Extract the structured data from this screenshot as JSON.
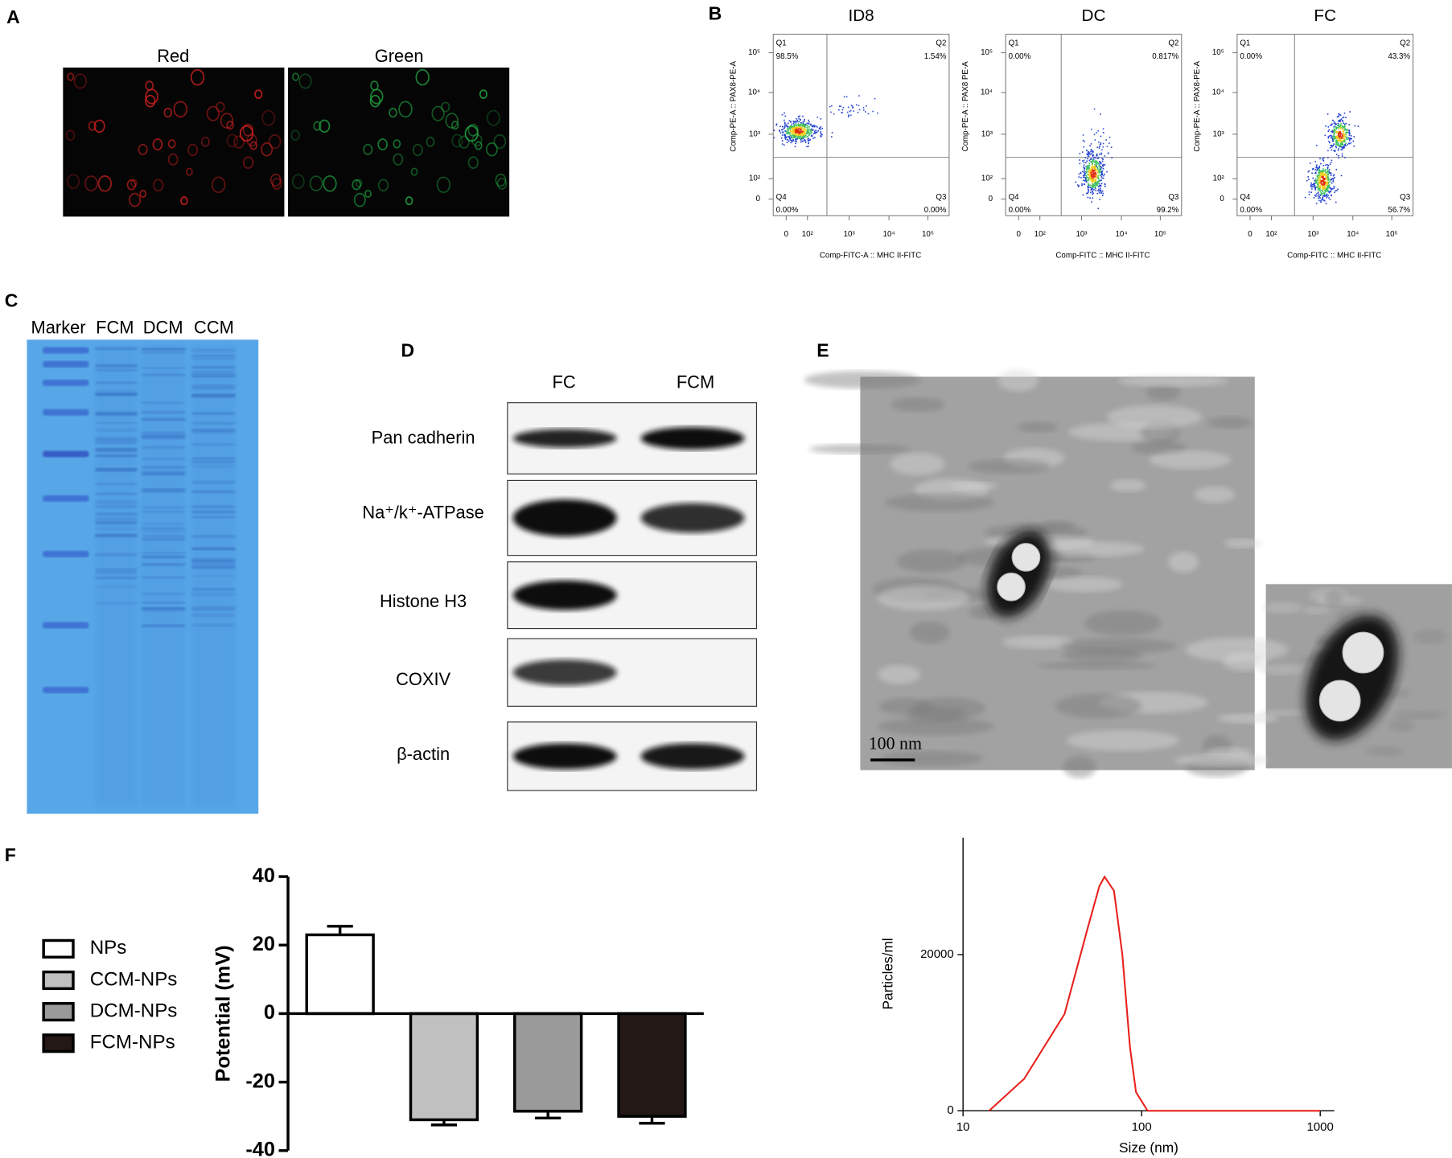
{
  "figure": {
    "A": {
      "label": "A",
      "images": [
        "Red",
        "Green"
      ]
    },
    "B": {
      "label": "B",
      "plots": [
        {
          "title": "ID8",
          "quadrants": [
            {
              "name": "Q1",
              "percent": "98.5%"
            },
            {
              "name": "Q2",
              "percent": "1.54%"
            },
            {
              "name": "Q4",
              "percent": "0.00%"
            },
            {
              "name": "Q3",
              "percent": "0.00%"
            }
          ],
          "xlabel": "Comp-FITC-A :: MHC II-FITC",
          "ylabel": "Comp-PE-A :: PAX8-PE-A",
          "xticks": [
            "0",
            "10²",
            "10³",
            "10⁴",
            "10⁵"
          ],
          "yticks": [
            "0",
            "10²",
            "10³",
            "10⁴",
            "10⁵"
          ]
        },
        {
          "title": "DC",
          "quadrants": [
            {
              "name": "Q1",
              "percent": "0.00%"
            },
            {
              "name": "Q2",
              "percent": "0.817%"
            },
            {
              "name": "Q4",
              "percent": "0.00%"
            },
            {
              "name": "Q3",
              "percent": "99.2%"
            }
          ],
          "xlabel": "Comp-FITC :: MHC II-FITC",
          "ylabel": "Comp-PE-A :: PAX8 PE-A",
          "xticks": [
            "0",
            "10²",
            "10³",
            "10⁴",
            "10⁵"
          ],
          "yticks": [
            "0",
            "10²",
            "10³",
            "10⁴",
            "10⁵"
          ]
        },
        {
          "title": "FC",
          "quadrants": [
            {
              "name": "Q1",
              "percent": "0.00%"
            },
            {
              "name": "Q2",
              "percent": "43.3%"
            },
            {
              "name": "Q4",
              "percent": "0.00%"
            },
            {
              "name": "Q3",
              "percent": "56.7%"
            }
          ],
          "xlabel": "Comp-FITC :: MHC II-FITC",
          "ylabel": "Comp-PE-A :: PAX8-PE-A",
          "xticks": [
            "0",
            "10²",
            "10³",
            "10⁴",
            "10⁵"
          ],
          "yticks": [
            "0",
            "10²",
            "10³",
            "10⁴",
            "10⁵"
          ]
        }
      ]
    },
    "C": {
      "label": "C",
      "lanes": [
        "Marker",
        "FCM",
        "DCM",
        "CCM"
      ]
    },
    "D": {
      "label": "D",
      "columns": [
        "FC",
        "FCM"
      ],
      "rows": [
        "Pan cadherin",
        "Na⁺/k⁺-ATPase",
        "Histone H3",
        "COXIV",
        "β-actin"
      ]
    },
    "E": {
      "label": "E",
      "scale_bar": "100 nm"
    },
    "F": {
      "label": "F"
    }
  },
  "chart_data": [
    {
      "type": "bar",
      "categories": [
        "NPs",
        "CCM-NPs",
        "DCM-NPs",
        "FCM-NPs"
      ],
      "values": [
        23,
        -31,
        -28.5,
        -30
      ],
      "errors": [
        2.5,
        1.5,
        2,
        2
      ],
      "colors": [
        "#ffffff",
        "#c0c0c0",
        "#9a9a9a",
        "#231815"
      ],
      "ylabel": "Potential (mV)",
      "ylim": [
        -40,
        40
      ],
      "yticks": [
        -40,
        -20,
        0,
        20,
        40
      ],
      "legend": "left"
    },
    {
      "type": "line",
      "x": [
        14,
        22,
        37,
        50,
        58,
        62,
        70,
        78,
        86,
        93,
        108,
        200,
        500,
        1000
      ],
      "values": [
        0,
        4100,
        12400,
        23500,
        28800,
        30000,
        28200,
        20000,
        8200,
        2400,
        0,
        0,
        0,
        0
      ],
      "color": "#e8201c",
      "xlabel": "Size (nm)",
      "ylabel": "Particles/ml",
      "xlim": [
        10,
        1200
      ],
      "ylim": [
        0,
        35000
      ],
      "xticks": [
        10,
        100,
        1000
      ],
      "yticks": [
        0,
        20000
      ],
      "log_x": true
    }
  ]
}
